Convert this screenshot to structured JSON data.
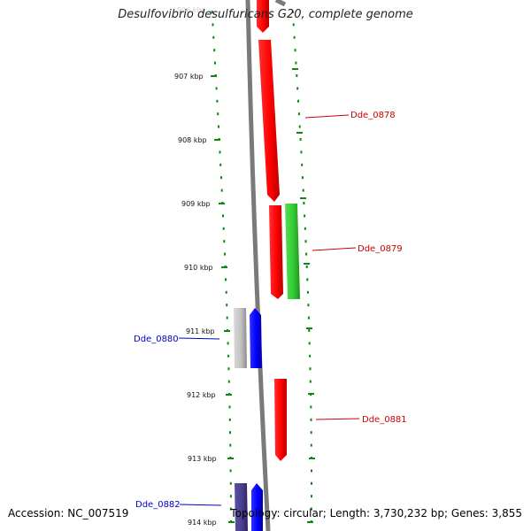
{
  "title": "Desulfovibrio desulfuricans G20, complete genome",
  "footer": {
    "accession": "Accession: NC_007519",
    "summary": "Topology: circular; Length: 3,730,232 bp; Genes: 3,855"
  },
  "colors": {
    "forward_gene": "#ff0000",
    "reverse_gene": "#0000ff",
    "rna_gene": "#33cc33",
    "pseudo_gene": "#bbbbbb",
    "dark_gene": "#4a3f8f",
    "tick": "#0a8a0a",
    "backbone": "#7a7a7a",
    "forward_label": "#cc0000",
    "reverse_label": "#0000cc"
  },
  "ticks": [
    {
      "label": "907 kbp"
    },
    {
      "label": "908 kbp"
    },
    {
      "label": "909 kbp"
    },
    {
      "label": "910 kbp"
    },
    {
      "label": "911 kbp"
    },
    {
      "label": "912 kbp"
    },
    {
      "label": "913 kbp"
    },
    {
      "label": "914 kbp"
    }
  ],
  "gene_labels": [
    {
      "text": "Dde_0878",
      "strand": "forward"
    },
    {
      "text": "Dde_0879",
      "strand": "forward"
    },
    {
      "text": "Dde_0880",
      "strand": "reverse"
    },
    {
      "text": "Dde_0881",
      "strand": "forward"
    },
    {
      "text": "Dde_0882",
      "strand": "reverse"
    }
  ]
}
